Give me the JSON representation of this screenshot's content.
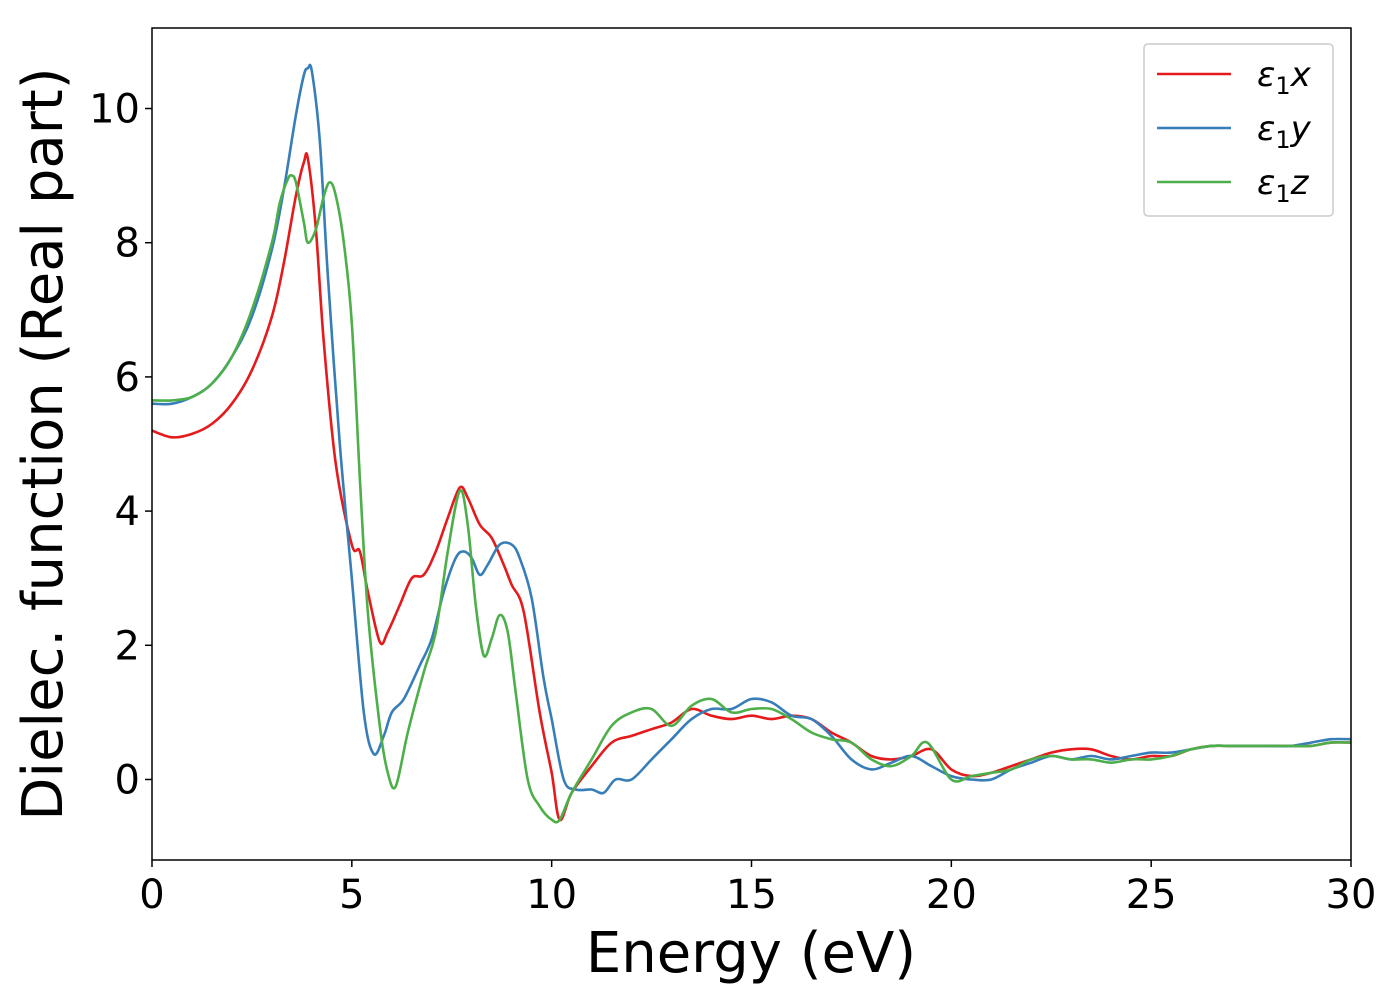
{
  "chart_data": {
    "type": "line",
    "xlabel": "Energy (eV)",
    "ylabel": "Dielec. function (Real part)",
    "xlim": [
      0,
      30
    ],
    "ylim": [
      -1.2,
      11.2
    ],
    "xticks": [
      0,
      5,
      10,
      15,
      20,
      25,
      30
    ],
    "yticks": [
      0,
      2,
      4,
      6,
      8,
      10
    ],
    "grid": false,
    "legend_position": "top-right",
    "series": [
      {
        "name": "ε1x",
        "legend_base": "ε",
        "legend_sub": "1",
        "legend_suffix": "x",
        "color": "#e41a1c",
        "x": [
          0,
          0.5,
          1.0,
          1.5,
          2.0,
          2.5,
          3.0,
          3.3,
          3.6,
          3.8,
          3.9,
          4.1,
          4.3,
          4.6,
          5.0,
          5.2,
          5.4,
          5.7,
          5.9,
          6.2,
          6.5,
          6.8,
          7.1,
          7.4,
          7.7,
          7.9,
          8.2,
          8.5,
          8.8,
          9.0,
          9.3,
          9.7,
          10.0,
          10.2,
          10.5,
          11.0,
          11.5,
          12.0,
          12.5,
          13.0,
          13.5,
          14.0,
          14.5,
          15.0,
          15.5,
          16.0,
          16.5,
          17.0,
          17.5,
          18.0,
          18.5,
          19.0,
          19.5,
          20.0,
          20.5,
          21.0,
          21.5,
          22.0,
          22.5,
          23.0,
          23.5,
          24.0,
          24.5,
          25.0,
          25.5,
          26.0,
          26.5,
          27.0,
          27.5,
          28.0,
          28.5,
          29.0,
          29.5,
          30.0
        ],
        "y": [
          5.2,
          5.1,
          5.15,
          5.3,
          5.6,
          6.1,
          6.9,
          7.7,
          8.7,
          9.2,
          9.25,
          8.2,
          6.5,
          4.7,
          3.5,
          3.4,
          2.8,
          2.05,
          2.2,
          2.6,
          3.0,
          3.05,
          3.4,
          3.9,
          4.35,
          4.2,
          3.8,
          3.6,
          3.2,
          2.9,
          2.5,
          1.0,
          0.1,
          -0.6,
          -0.2,
          0.2,
          0.55,
          0.65,
          0.75,
          0.85,
          1.05,
          0.95,
          0.9,
          0.95,
          0.9,
          0.95,
          0.9,
          0.7,
          0.55,
          0.35,
          0.3,
          0.35,
          0.45,
          0.15,
          0.05,
          0.1,
          0.2,
          0.3,
          0.4,
          0.45,
          0.45,
          0.35,
          0.3,
          0.35,
          0.35,
          0.45,
          0.5,
          0.5,
          0.5,
          0.5,
          0.5,
          0.5,
          0.55,
          0.55
        ]
      },
      {
        "name": "ε1y",
        "legend_base": "ε",
        "legend_sub": "1",
        "legend_suffix": "y",
        "color": "#377eb8",
        "x": [
          0,
          0.5,
          1.0,
          1.5,
          2.0,
          2.5,
          3.0,
          3.3,
          3.6,
          3.8,
          3.9,
          4.0,
          4.2,
          4.4,
          4.7,
          5.0,
          5.3,
          5.55,
          5.8,
          6.0,
          6.3,
          6.7,
          7.0,
          7.3,
          7.6,
          7.8,
          8.0,
          8.2,
          8.4,
          8.7,
          9.0,
          9.2,
          9.5,
          9.8,
          10.0,
          10.3,
          10.6,
          11.0,
          11.3,
          11.6,
          12.0,
          12.5,
          13.0,
          13.5,
          14.0,
          14.5,
          15.0,
          15.5,
          16.0,
          16.5,
          17.0,
          17.5,
          18.0,
          18.5,
          19.0,
          19.5,
          20.0,
          20.5,
          21.0,
          21.5,
          22.0,
          22.5,
          23.0,
          23.5,
          24.0,
          24.5,
          25.0,
          25.5,
          26.0,
          26.5,
          27.0,
          27.5,
          28.0,
          28.5,
          29.0,
          29.5,
          30.0
        ],
        "y": [
          5.6,
          5.6,
          5.7,
          5.9,
          6.3,
          6.9,
          7.9,
          8.8,
          9.9,
          10.5,
          10.6,
          10.55,
          9.5,
          7.5,
          5.0,
          3.0,
          1.0,
          0.38,
          0.65,
          1.0,
          1.2,
          1.7,
          2.1,
          2.8,
          3.3,
          3.4,
          3.3,
          3.05,
          3.2,
          3.5,
          3.5,
          3.3,
          2.7,
          1.5,
          0.9,
          0.0,
          -0.15,
          -0.15,
          -0.2,
          0.0,
          0.0,
          0.3,
          0.6,
          0.9,
          1.05,
          1.05,
          1.2,
          1.15,
          0.95,
          0.9,
          0.65,
          0.3,
          0.15,
          0.25,
          0.35,
          0.2,
          0.05,
          0.0,
          0.0,
          0.15,
          0.25,
          0.35,
          0.3,
          0.35,
          0.3,
          0.35,
          0.4,
          0.4,
          0.45,
          0.5,
          0.5,
          0.5,
          0.5,
          0.5,
          0.55,
          0.6,
          0.6
        ]
      },
      {
        "name": "ε1z",
        "legend_base": "ε",
        "legend_sub": "1",
        "legend_suffix": "z",
        "color": "#4daf4a",
        "x": [
          0,
          0.5,
          1.0,
          1.5,
          2.0,
          2.5,
          3.0,
          3.2,
          3.4,
          3.5,
          3.6,
          3.8,
          3.9,
          4.1,
          4.3,
          4.45,
          4.6,
          4.8,
          5.0,
          5.2,
          5.4,
          5.7,
          5.9,
          6.1,
          6.4,
          6.8,
          7.1,
          7.4,
          7.7,
          7.9,
          8.1,
          8.3,
          8.5,
          8.7,
          8.9,
          9.1,
          9.4,
          9.7,
          10.0,
          10.2,
          10.5,
          11.0,
          11.5,
          12.0,
          12.5,
          13.0,
          13.5,
          14.0,
          14.5,
          15.0,
          15.5,
          16.0,
          16.5,
          17.0,
          17.5,
          18.0,
          18.5,
          19.0,
          19.4,
          20.0,
          20.5,
          21.0,
          21.5,
          22.0,
          22.5,
          23.0,
          23.5,
          24.0,
          24.5,
          25.0,
          25.5,
          26.0,
          26.5,
          27.0,
          27.5,
          28.0,
          28.5,
          29.0,
          29.5,
          30.0
        ],
        "y": [
          5.65,
          5.65,
          5.7,
          5.9,
          6.3,
          7.0,
          8.0,
          8.6,
          8.95,
          9.0,
          8.9,
          8.3,
          8.0,
          8.2,
          8.7,
          8.9,
          8.7,
          8.0,
          6.8,
          4.5,
          2.5,
          0.8,
          0.1,
          -0.1,
          0.7,
          1.6,
          2.2,
          3.4,
          4.3,
          3.8,
          2.6,
          1.85,
          2.1,
          2.45,
          2.2,
          1.3,
          0.0,
          -0.4,
          -0.6,
          -0.6,
          -0.2,
          0.3,
          0.8,
          1.0,
          1.05,
          0.8,
          1.1,
          1.2,
          1.0,
          1.05,
          1.05,
          0.9,
          0.7,
          0.6,
          0.55,
          0.3,
          0.2,
          0.35,
          0.55,
          0.0,
          0.05,
          0.1,
          0.15,
          0.3,
          0.35,
          0.3,
          0.3,
          0.25,
          0.3,
          0.3,
          0.35,
          0.45,
          0.5,
          0.5,
          0.5,
          0.5,
          0.5,
          0.5,
          0.55,
          0.55
        ]
      }
    ]
  }
}
